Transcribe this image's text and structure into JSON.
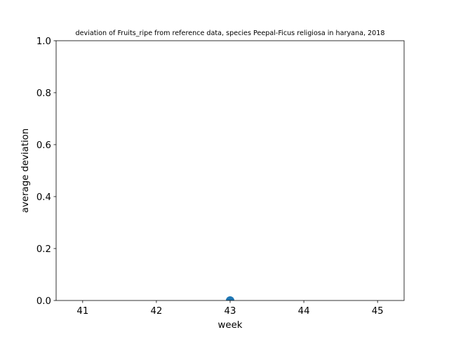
{
  "chart_data": {
    "type": "scatter",
    "title": "deviation of Fruits_ripe from reference data, species Peepal-Ficus religiosa in haryana, 2018",
    "xlabel": "week",
    "ylabel": "average deviation",
    "xlim": [
      40.64,
      45.36
    ],
    "ylim": [
      0,
      1
    ],
    "xticks": [
      41,
      42,
      43,
      44,
      45
    ],
    "yticks": [
      0.0,
      0.2,
      0.4,
      0.6,
      0.8,
      1.0
    ],
    "xtick_labels": [
      "41",
      "42",
      "43",
      "44",
      "45"
    ],
    "ytick_labels": [
      "0.0",
      "0.2",
      "0.4",
      "0.6",
      "0.8",
      "1.0"
    ],
    "series": [
      {
        "x": [
          43
        ],
        "y": [
          0
        ],
        "color": "#1f77b4"
      }
    ],
    "grid": false,
    "legend": false
  }
}
